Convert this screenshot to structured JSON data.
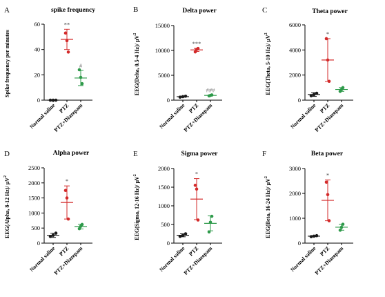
{
  "colors": {
    "saline": "#1a1a1a",
    "ptz": "#d32a2a",
    "diazepam": "#2e9a4a",
    "axis": "#000000"
  },
  "categories": [
    "Normal saline",
    "PTZ",
    "PTZ+Diazepam"
  ],
  "chart_data": [
    {
      "letter": "A",
      "type": "scatter",
      "title": "spike frequency",
      "ylabel": "Spike frequency per minutes",
      "ylabel_sup": "",
      "ylim": [
        0,
        60
      ],
      "yticks": [
        0,
        20,
        40,
        60
      ],
      "categories": [
        "Normal saline",
        "PTZ",
        "PTZ+Diazepam"
      ],
      "series": [
        {
          "points": [
            0,
            0,
            0
          ],
          "mean": 0,
          "err": 0,
          "sig": ""
        },
        {
          "points": [
            53,
            47,
            38
          ],
          "mean": 48,
          "err": 8,
          "sig": "**"
        },
        {
          "points": [
            24,
            18,
            13
          ],
          "mean": 17.5,
          "err": 6,
          "sig": "#"
        }
      ]
    },
    {
      "letter": "B",
      "type": "scatter",
      "title": "Delta power",
      "ylabel": "EEG(Delta, 0.5-4 Hz)/ μV",
      "ylabel_sup": "2",
      "ylim": [
        0,
        15000
      ],
      "yticks": [
        0,
        5000,
        10000,
        15000
      ],
      "categories": [
        "Normal saline",
        "PTZ",
        "PTZ+Diazepam"
      ],
      "series": [
        {
          "points": [
            600,
            700,
            800
          ],
          "mean": 700,
          "err": 100,
          "sig": ""
        },
        {
          "points": [
            9700,
            10200,
            10400
          ],
          "mean": 10100,
          "err": 300,
          "sig": "***"
        },
        {
          "points": [
            850,
            950,
            1050
          ],
          "mean": 950,
          "err": 100,
          "sig": "###"
        }
      ]
    },
    {
      "letter": "C",
      "type": "scatter",
      "title": "Theta power",
      "ylabel": "EEG(Theta, 5-10 Hz)/ μV",
      "ylabel_sup": "2",
      "ylim": [
        0,
        6000
      ],
      "yticks": [
        0,
        2000,
        4000,
        6000
      ],
      "categories": [
        "Normal saline",
        "PTZ",
        "PTZ+Diazepam"
      ],
      "series": [
        {
          "points": [
            350,
            450,
            550
          ],
          "mean": 450,
          "err": 150,
          "sig": ""
        },
        {
          "points": [
            4900,
            3200,
            1500
          ],
          "mean": 3200,
          "err": 1700,
          "sig": "*"
        },
        {
          "points": [
            700,
            850,
            1000
          ],
          "mean": 850,
          "err": 150,
          "sig": ""
        }
      ]
    },
    {
      "letter": "D",
      "type": "scatter",
      "title": "Alpha power",
      "ylabel": "EEG(Alpha, 8-12 Hz)/ μV",
      "ylabel_sup": "2",
      "ylim": [
        0,
        2500
      ],
      "yticks": [
        0,
        500,
        1000,
        1500,
        2000,
        2500
      ],
      "categories": [
        "Normal saline",
        "PTZ",
        "PTZ+Diazepam"
      ],
      "series": [
        {
          "points": [
            220,
            260,
            330
          ],
          "mean": 260,
          "err": 70,
          "sig": ""
        },
        {
          "points": [
            1750,
            1500,
            800
          ],
          "mean": 1350,
          "err": 550,
          "sig": "*"
        },
        {
          "points": [
            480,
            560,
            620
          ],
          "mean": 550,
          "err": 80,
          "sig": ""
        }
      ]
    },
    {
      "letter": "E",
      "type": "scatter",
      "title": "Sigma power",
      "ylabel": "EEG(Sigma, 12-16 Hz)/ μV",
      "ylabel_sup": "2",
      "ylim": [
        0,
        2000
      ],
      "yticks": [
        0,
        500,
        1000,
        1500,
        2000
      ],
      "categories": [
        "Normal saline",
        "PTZ",
        "PTZ+Diazepam"
      ],
      "series": [
        {
          "points": [
            180,
            210,
            250
          ],
          "mean": 210,
          "err": 40,
          "sig": ""
        },
        {
          "points": [
            1550,
            1450,
            620
          ],
          "mean": 1180,
          "err": 550,
          "sig": "*"
        },
        {
          "points": [
            300,
            560,
            720
          ],
          "mean": 530,
          "err": 200,
          "sig": ""
        }
      ]
    },
    {
      "letter": "F",
      "type": "scatter",
      "title": "Beta power",
      "ylabel": "EEG(Beta, 16-24 Hz)/ μV",
      "ylabel_sup": "2",
      "ylim": [
        0,
        3000
      ],
      "yticks": [
        0,
        1000,
        2000,
        3000
      ],
      "categories": [
        "Normal saline",
        "PTZ",
        "PTZ+Diazepam"
      ],
      "series": [
        {
          "points": [
            260,
            280,
            300
          ],
          "mean": 280,
          "err": 20,
          "sig": ""
        },
        {
          "points": [
            2450,
            1950,
            900
          ],
          "mean": 1720,
          "err": 820,
          "sig": "*"
        },
        {
          "points": [
            520,
            640,
            760
          ],
          "mean": 640,
          "err": 120,
          "sig": ""
        }
      ]
    }
  ]
}
